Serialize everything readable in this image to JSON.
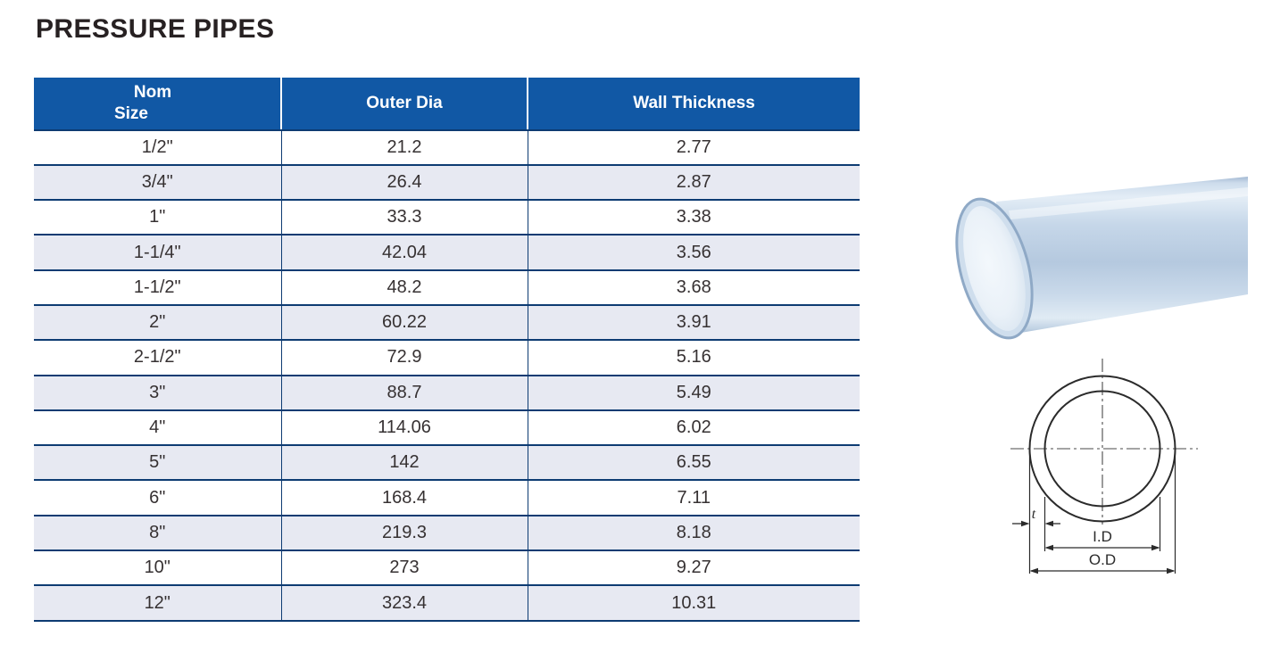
{
  "title": "PRESSURE PIPES",
  "table": {
    "headers": [
      {
        "line1": "Nom",
        "line2": "Size"
      },
      {
        "label": "Outer Dia"
      },
      {
        "label": "Wall Thickness"
      }
    ],
    "rows": [
      [
        "1/2\"",
        "21.2",
        "2.77"
      ],
      [
        "3/4\"",
        "26.4",
        "2.87"
      ],
      [
        "1\"",
        "33.3",
        "3.38"
      ],
      [
        "1-1/4\"",
        "42.04",
        "3.56"
      ],
      [
        "1-1/2\"",
        "48.2",
        "3.68"
      ],
      [
        "2\"",
        "60.22",
        "3.91"
      ],
      [
        "2-1/2\"",
        "72.9",
        "5.16"
      ],
      [
        "3\"",
        "88.7",
        "5.49"
      ],
      [
        "4\"",
        "114.06",
        "6.02"
      ],
      [
        "5\"",
        "142",
        "6.55"
      ],
      [
        "6\"",
        "168.4",
        "7.11"
      ],
      [
        "8\"",
        "219.3",
        "8.18"
      ],
      [
        "10\"",
        "273",
        "9.27"
      ],
      [
        "12\"",
        "323.4",
        "10.31"
      ]
    ]
  },
  "diagram": {
    "thickness_label": "t",
    "inner_dia_label": "I.D",
    "outer_dia_label": "O.D"
  },
  "colors": {
    "header_bg": "#1158a5",
    "row_alt_bg": "#e7e9f2",
    "grid_line": "#0d3b72",
    "title_text": "#272122",
    "cell_text": "#363132",
    "pipe_blue": "#b5c9df"
  }
}
